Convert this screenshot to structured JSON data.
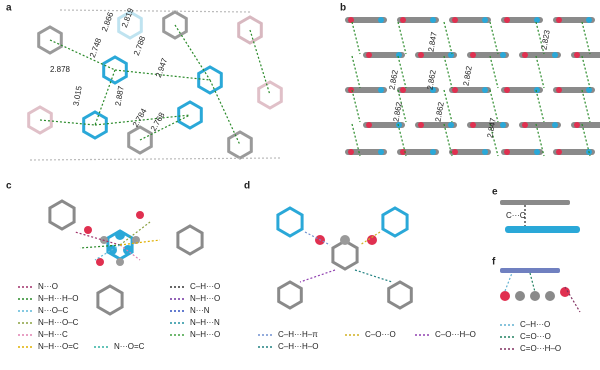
{
  "panels": {
    "a": {
      "label": "a",
      "distances": [
        "2.866",
        "2.819",
        "2.748",
        "2.788",
        "2.878",
        "2.947",
        "3.015",
        "2.887",
        "2.784",
        "2.768"
      ]
    },
    "b": {
      "label": "b",
      "distances": [
        "2.847",
        "2.823",
        "2.862",
        "2.862",
        "2.862",
        "2.862",
        "2.862",
        "2.847"
      ]
    },
    "c": {
      "label": "c",
      "legend": [
        {
          "text": "N···O",
          "color": "#a0306a"
        },
        {
          "text": "N–H···H–O",
          "color": "#2a8a2a"
        },
        {
          "text": "N···O–C",
          "color": "#5fb8d8"
        },
        {
          "text": "N–H···O–C",
          "color": "#8aa040"
        },
        {
          "text": "N–H···C",
          "color": "#e080b0"
        },
        {
          "text": "N–H···O=C",
          "color": "#e0b000"
        },
        {
          "text": "N···O=C",
          "color": "#30b0a0"
        },
        {
          "text": "C–H···O",
          "color": "#333333"
        },
        {
          "text": "N–H···O",
          "color": "#7030a0"
        },
        {
          "text": "N···N",
          "color": "#3050c0"
        },
        {
          "text": "N–H···N",
          "color": "#2090a0"
        },
        {
          "text": "N–H···O",
          "color": "#40a040"
        }
      ]
    },
    "d": {
      "label": "d",
      "legend": [
        {
          "text": "C–H···H–π",
          "color": "#7090d0"
        },
        {
          "text": "C–O···O",
          "color": "#d0b020"
        },
        {
          "text": "C–O···H–O",
          "color": "#9040b0"
        },
        {
          "text": "C–H···H–O",
          "color": "#208080"
        }
      ]
    },
    "e": {
      "label": "e",
      "annotation": "C···C"
    },
    "f": {
      "label": "f",
      "legend": [
        {
          "text": "C–H···O",
          "color": "#60b0d0"
        },
        {
          "text": "C=O···O",
          "color": "#208060"
        },
        {
          "text": "C=O···H–O",
          "color": "#803060"
        }
      ]
    }
  }
}
